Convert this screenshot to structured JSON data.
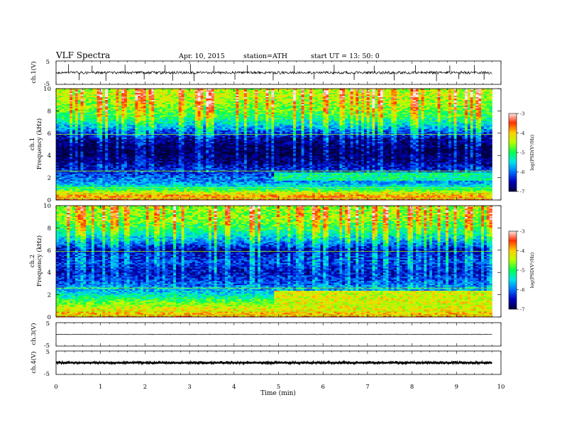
{
  "header": {
    "title": "VLF  Spectra",
    "date": "Apr. 10,  2015",
    "station": "station=ATH",
    "start": "start  UT  =   13: 50: 0"
  },
  "chart_data": [
    {
      "id": "ch1-waveform",
      "type": "line",
      "ylabel": "ch.1(V)",
      "ylim": [
        -5,
        5
      ],
      "yticks": [
        "5",
        "-5"
      ],
      "xlim": [
        0,
        10
      ],
      "x_extent": 9.8,
      "level": 0.0,
      "noise_amplitude": 0.55,
      "spikes": [
        {
          "x": 0.28,
          "y": 3.6
        },
        {
          "x": 0.52,
          "y": -3.2
        },
        {
          "x": 0.81,
          "y": 3.0
        },
        {
          "x": 1.12,
          "y": -3.5
        },
        {
          "x": 1.55,
          "y": 3.4
        },
        {
          "x": 1.98,
          "y": -2.9
        },
        {
          "x": 2.45,
          "y": 3.3
        },
        {
          "x": 2.62,
          "y": -3.4
        },
        {
          "x": 3.02,
          "y": 3.7
        },
        {
          "x": 3.1,
          "y": -3.6
        },
        {
          "x": 3.55,
          "y": 3.0
        },
        {
          "x": 4.02,
          "y": -3.0
        },
        {
          "x": 4.3,
          "y": 3.2
        },
        {
          "x": 4.88,
          "y": -3.3
        },
        {
          "x": 5.35,
          "y": 3.1
        },
        {
          "x": 5.8,
          "y": -2.8
        },
        {
          "x": 6.25,
          "y": 3.4
        },
        {
          "x": 6.7,
          "y": -3.1
        },
        {
          "x": 7.15,
          "y": 3.0
        },
        {
          "x": 7.6,
          "y": -3.3
        },
        {
          "x": 8.08,
          "y": 3.2
        },
        {
          "x": 8.55,
          "y": -3.6
        },
        {
          "x": 8.85,
          "y": 3.1
        },
        {
          "x": 9.05,
          "y": -2.7
        },
        {
          "x": 9.4,
          "y": 3.3
        },
        {
          "x": 9.62,
          "y": -3.0
        }
      ]
    },
    {
      "id": "ch1-spectrogram",
      "type": "heatmap",
      "ylabel": "ch.1\nFrequency  (kHz)",
      "xlim": [
        0,
        10
      ],
      "x_extent": 9.8,
      "ylim": [
        0,
        10
      ],
      "yticks": [
        "0",
        "2",
        "4",
        "6",
        "8",
        "10"
      ],
      "colorbar": {
        "label": "log(PSD(V²/Hz)",
        "range": [
          -7,
          -3
        ],
        "ticks": [
          "-3",
          "-4",
          "-5",
          "-6",
          "-7"
        ]
      },
      "frequency_profile_logpsd": [
        {
          "f": 0.0,
          "v": -3.6
        },
        {
          "f": 0.5,
          "v": -3.9
        },
        {
          "f": 1.0,
          "v": -5.0
        },
        {
          "f": 1.5,
          "v": -5.8
        },
        {
          "f": 2.0,
          "v": -6.0
        },
        {
          "f": 2.5,
          "v": -6.3
        },
        {
          "f": 3.0,
          "v": -6.5
        },
        {
          "f": 3.5,
          "v": -6.8
        },
        {
          "f": 4.5,
          "v": -7.0
        },
        {
          "f": 5.5,
          "v": -6.7
        },
        {
          "f": 6.5,
          "v": -5.8
        },
        {
          "f": 7.5,
          "v": -5.0
        },
        {
          "f": 8.5,
          "v": -4.6
        },
        {
          "f": 9.5,
          "v": -4.4
        },
        {
          "f": 10.0,
          "v": -4.5
        }
      ],
      "step_change": {
        "x": 4.9,
        "band": [
          1.8,
          2.5
        ],
        "v_after": -5.2
      },
      "spike_density": 0.35
    },
    {
      "id": "ch2-spectrogram",
      "type": "heatmap",
      "ylabel": "ch.2\nFrequency  (kHz)",
      "xlim": [
        0,
        10
      ],
      "x_extent": 9.8,
      "ylim": [
        0,
        10
      ],
      "yticks": [
        "0",
        "2",
        "4",
        "6",
        "8",
        "10"
      ],
      "colorbar": {
        "label": "log(PSD(V²/Hz)",
        "range": [
          -7,
          -3
        ],
        "ticks": [
          "-3",
          "-4",
          "-5",
          "-6",
          "-7"
        ]
      },
      "frequency_profile_logpsd": [
        {
          "f": 0.0,
          "v": -3.8
        },
        {
          "f": 0.8,
          "v": -4.3
        },
        {
          "f": 1.5,
          "v": -4.9
        },
        {
          "f": 2.2,
          "v": -5.6
        },
        {
          "f": 3.0,
          "v": -6.1
        },
        {
          "f": 4.0,
          "v": -6.5
        },
        {
          "f": 5.0,
          "v": -6.2
        },
        {
          "f": 6.0,
          "v": -6.6
        },
        {
          "f": 7.0,
          "v": -5.7
        },
        {
          "f": 8.0,
          "v": -5.0
        },
        {
          "f": 9.0,
          "v": -4.6
        },
        {
          "f": 10.0,
          "v": -4.6
        }
      ],
      "step_change": {
        "x": 4.9,
        "band": [
          0.8,
          2.4
        ],
        "v_after": -4.3
      },
      "spike_density": 0.32
    },
    {
      "id": "ch3-waveform",
      "type": "line",
      "ylabel": "ch.3(V)",
      "ylim": [
        -5,
        5
      ],
      "yticks": [
        "5",
        "-5"
      ],
      "xlim": [
        0,
        10
      ],
      "x_extent": 9.8,
      "level": 0.0,
      "noise_amplitude": 0.12
    },
    {
      "id": "ch4-waveform",
      "type": "line",
      "ylabel": "ch.4(V)",
      "ylim": [
        -5,
        5
      ],
      "yticks": [
        "5",
        "-5"
      ],
      "xlim": [
        0,
        10
      ],
      "x_extent": 9.8,
      "level": 0.0,
      "noise_amplitude": 0.6
    }
  ],
  "xaxis": {
    "label": "Time  (min)",
    "ticks": [
      "0",
      "1",
      "2",
      "3",
      "4",
      "5",
      "6",
      "7",
      "8",
      "9",
      "10"
    ]
  }
}
